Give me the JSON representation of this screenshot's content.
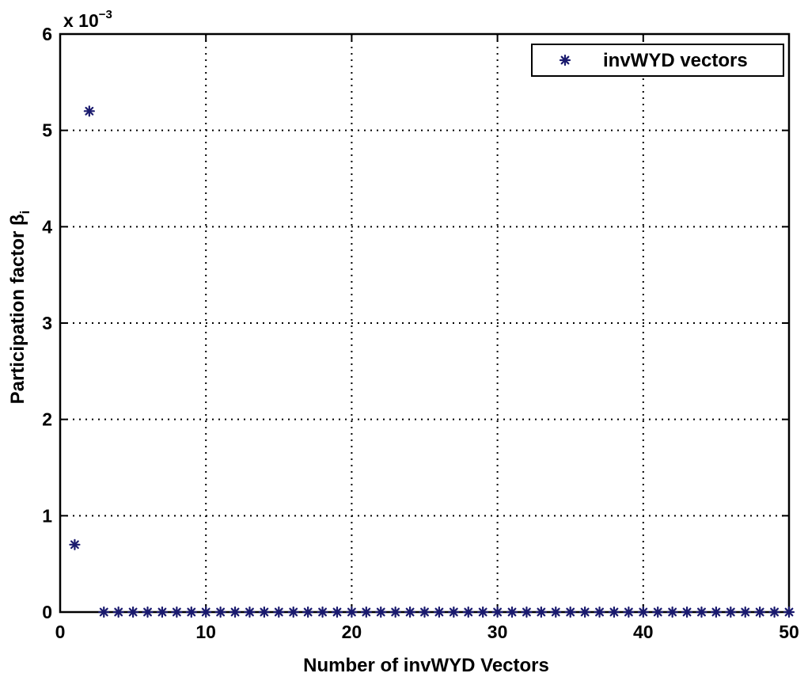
{
  "chart_data": {
    "type": "scatter",
    "xlabel": "Number of invWYD Vectors",
    "ylabel": "Participation factor β",
    "ylabel_subscript": "i",
    "y_exponent_base": "x 10",
    "y_exponent_power": "−3",
    "xlim": [
      0,
      50
    ],
    "ylim": [
      0,
      6
    ],
    "x_ticks": [
      "0",
      "10",
      "20",
      "30",
      "40",
      "50"
    ],
    "y_ticks": [
      "0",
      "1",
      "2",
      "3",
      "4",
      "5",
      "6"
    ],
    "grid": true,
    "legend_position": "top-right",
    "series": [
      {
        "name": "invWYD vectors",
        "marker": "asterisk",
        "color": "#1a1a6e",
        "x": [
          1,
          2,
          3,
          4,
          5,
          6,
          7,
          8,
          9,
          10,
          11,
          12,
          13,
          14,
          15,
          16,
          17,
          18,
          19,
          20,
          21,
          22,
          23,
          24,
          25,
          26,
          27,
          28,
          29,
          30,
          31,
          32,
          33,
          34,
          35,
          36,
          37,
          38,
          39,
          40,
          41,
          42,
          43,
          44,
          45,
          46,
          47,
          48,
          49,
          50
        ],
        "y": [
          0.7,
          5.2,
          0,
          0,
          0,
          0,
          0,
          0,
          0,
          0,
          0,
          0,
          0,
          0,
          0,
          0,
          0,
          0,
          0,
          0,
          0,
          0,
          0,
          0,
          0,
          0,
          0,
          0,
          0,
          0,
          0,
          0,
          0,
          0,
          0,
          0,
          0,
          0,
          0,
          0,
          0,
          0,
          0,
          0,
          0,
          0,
          0,
          0,
          0,
          0
        ]
      }
    ]
  }
}
